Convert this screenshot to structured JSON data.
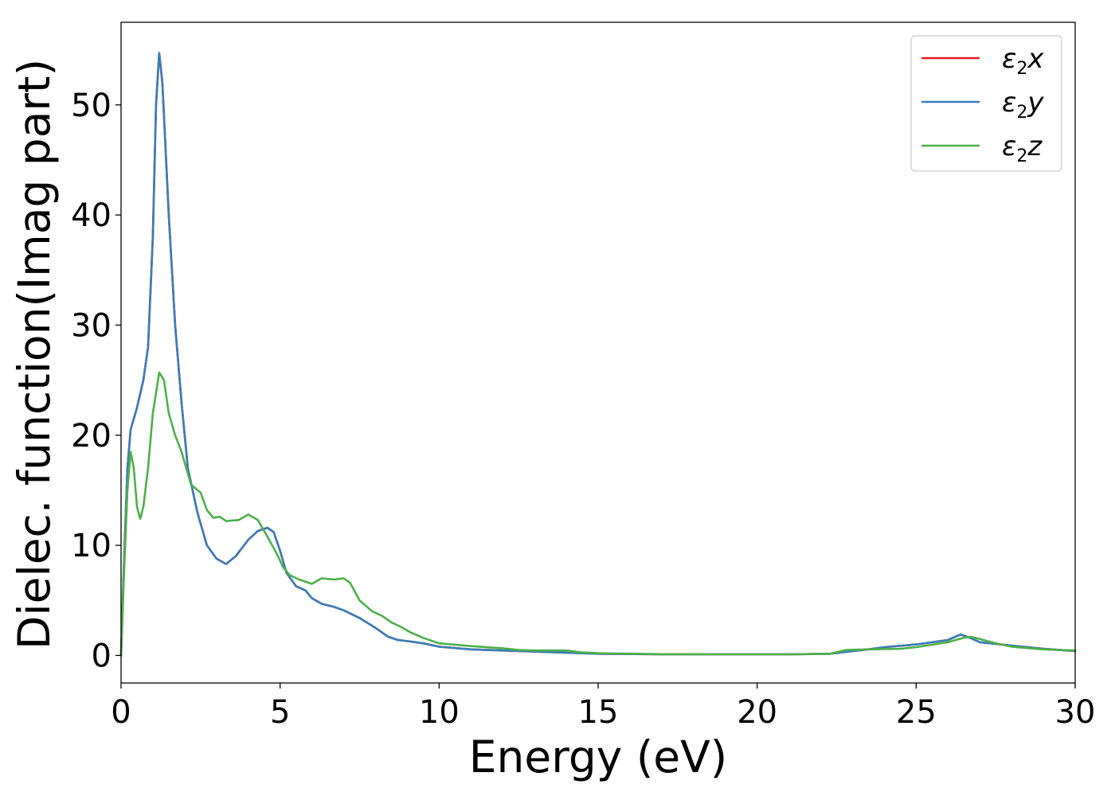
{
  "chart_data": {
    "type": "line",
    "title": "",
    "xlabel": "Energy (eV)",
    "ylabel": "Dielec. function(Imag part)",
    "xlim": [
      0,
      30
    ],
    "ylim": [
      -2.5,
      57.5
    ],
    "xticks": [
      0,
      5,
      10,
      15,
      20,
      25,
      30
    ],
    "yticks": [
      0,
      10,
      20,
      30,
      40,
      50
    ],
    "xtick_labels": [
      "0",
      "5",
      "10",
      "15",
      "20",
      "25",
      "30"
    ],
    "ytick_labels": [
      "0",
      "10",
      "20",
      "30",
      "40",
      "50"
    ],
    "grid": false,
    "legend_position": "top-right",
    "series": [
      {
        "name": "ε2x",
        "legend_symbol": "ε",
        "legend_sub": "2",
        "legend_var": "x",
        "color": "#e41a1c",
        "points": [
          [
            0,
            0
          ],
          [
            0.1,
            9
          ],
          [
            0.2,
            17
          ],
          [
            0.3,
            20.5
          ],
          [
            0.5,
            22.5
          ],
          [
            0.7,
            25
          ],
          [
            0.85,
            28
          ],
          [
            1.0,
            38
          ],
          [
            1.1,
            50
          ],
          [
            1.2,
            54.7
          ],
          [
            1.3,
            52
          ],
          [
            1.5,
            40
          ],
          [
            1.7,
            30
          ],
          [
            1.9,
            23
          ],
          [
            2.1,
            17
          ],
          [
            2.4,
            13
          ],
          [
            2.7,
            10
          ],
          [
            3.0,
            8.8
          ],
          [
            3.3,
            8.3
          ],
          [
            3.6,
            9
          ],
          [
            4.0,
            10.5
          ],
          [
            4.3,
            11.3
          ],
          [
            4.6,
            11.6
          ],
          [
            4.8,
            11.2
          ],
          [
            5.0,
            9.5
          ],
          [
            5.2,
            7.5
          ],
          [
            5.5,
            6.3
          ],
          [
            5.8,
            5.9
          ],
          [
            6.0,
            5.2
          ],
          [
            6.3,
            4.7
          ],
          [
            6.7,
            4.4
          ],
          [
            7.0,
            4.1
          ],
          [
            7.5,
            3.4
          ],
          [
            8.0,
            2.5
          ],
          [
            8.4,
            1.7
          ],
          [
            8.7,
            1.4
          ],
          [
            9.0,
            1.3
          ],
          [
            9.5,
            1.1
          ],
          [
            10,
            0.8
          ],
          [
            11,
            0.55
          ],
          [
            12,
            0.45
          ],
          [
            13,
            0.35
          ],
          [
            14,
            0.25
          ],
          [
            15,
            0.15
          ],
          [
            17,
            0.1
          ],
          [
            19,
            0.1
          ],
          [
            20,
            0.1
          ],
          [
            21,
            0.1
          ],
          [
            22.3,
            0.15
          ],
          [
            23,
            0.4
          ],
          [
            23.5,
            0.55
          ],
          [
            24,
            0.75
          ],
          [
            25,
            1.0
          ],
          [
            26,
            1.4
          ],
          [
            26.4,
            1.9
          ],
          [
            26.7,
            1.6
          ],
          [
            27,
            1.2
          ],
          [
            28,
            0.9
          ],
          [
            29,
            0.6
          ],
          [
            30,
            0.4
          ]
        ]
      },
      {
        "name": "ε2y",
        "legend_symbol": "ε",
        "legend_sub": "2",
        "legend_var": "y",
        "color": "#377eb8",
        "points": [
          [
            0,
            0
          ],
          [
            0.1,
            9
          ],
          [
            0.2,
            17
          ],
          [
            0.3,
            20.5
          ],
          [
            0.5,
            22.5
          ],
          [
            0.7,
            25
          ],
          [
            0.85,
            28
          ],
          [
            1.0,
            38
          ],
          [
            1.1,
            50
          ],
          [
            1.2,
            54.7
          ],
          [
            1.3,
            52
          ],
          [
            1.5,
            40
          ],
          [
            1.7,
            30
          ],
          [
            1.9,
            23
          ],
          [
            2.1,
            17
          ],
          [
            2.4,
            13
          ],
          [
            2.7,
            10
          ],
          [
            3.0,
            8.8
          ],
          [
            3.3,
            8.3
          ],
          [
            3.6,
            9
          ],
          [
            4.0,
            10.5
          ],
          [
            4.3,
            11.3
          ],
          [
            4.6,
            11.6
          ],
          [
            4.8,
            11.2
          ],
          [
            5.0,
            9.5
          ],
          [
            5.2,
            7.5
          ],
          [
            5.5,
            6.3
          ],
          [
            5.8,
            5.9
          ],
          [
            6.0,
            5.2
          ],
          [
            6.3,
            4.7
          ],
          [
            6.7,
            4.4
          ],
          [
            7.0,
            4.1
          ],
          [
            7.5,
            3.4
          ],
          [
            8.0,
            2.5
          ],
          [
            8.4,
            1.7
          ],
          [
            8.7,
            1.4
          ],
          [
            9.0,
            1.3
          ],
          [
            9.5,
            1.1
          ],
          [
            10,
            0.8
          ],
          [
            11,
            0.55
          ],
          [
            12,
            0.45
          ],
          [
            13,
            0.35
          ],
          [
            14,
            0.25
          ],
          [
            15,
            0.15
          ],
          [
            17,
            0.1
          ],
          [
            19,
            0.1
          ],
          [
            20,
            0.1
          ],
          [
            21,
            0.1
          ],
          [
            22.3,
            0.15
          ],
          [
            23,
            0.4
          ],
          [
            23.5,
            0.55
          ],
          [
            24,
            0.75
          ],
          [
            25,
            1.0
          ],
          [
            26,
            1.4
          ],
          [
            26.4,
            1.9
          ],
          [
            26.7,
            1.6
          ],
          [
            27,
            1.2
          ],
          [
            28,
            0.9
          ],
          [
            29,
            0.6
          ],
          [
            30,
            0.4
          ]
        ]
      },
      {
        "name": "ε2z",
        "legend_symbol": "ε",
        "legend_sub": "2",
        "legend_var": "z",
        "color": "#4daf4a",
        "points": [
          [
            0,
            0
          ],
          [
            0.1,
            8
          ],
          [
            0.2,
            15
          ],
          [
            0.3,
            18.5
          ],
          [
            0.4,
            17
          ],
          [
            0.5,
            13.5
          ],
          [
            0.6,
            12.4
          ],
          [
            0.7,
            13.5
          ],
          [
            0.85,
            17
          ],
          [
            1.0,
            22
          ],
          [
            1.2,
            25.7
          ],
          [
            1.35,
            25
          ],
          [
            1.5,
            22
          ],
          [
            1.7,
            20
          ],
          [
            1.9,
            18.5
          ],
          [
            2.2,
            15.5
          ],
          [
            2.5,
            14.8
          ],
          [
            2.7,
            13.2
          ],
          [
            2.9,
            12.5
          ],
          [
            3.1,
            12.6
          ],
          [
            3.3,
            12.2
          ],
          [
            3.7,
            12.3
          ],
          [
            4.0,
            12.8
          ],
          [
            4.3,
            12.3
          ],
          [
            4.6,
            10.8
          ],
          [
            4.9,
            9.2
          ],
          [
            5.1,
            8.0
          ],
          [
            5.3,
            7.3
          ],
          [
            5.6,
            6.9
          ],
          [
            6.0,
            6.5
          ],
          [
            6.3,
            7.0
          ],
          [
            6.7,
            6.9
          ],
          [
            7.0,
            7.0
          ],
          [
            7.2,
            6.6
          ],
          [
            7.5,
            5.0
          ],
          [
            7.9,
            4.0
          ],
          [
            8.2,
            3.6
          ],
          [
            8.5,
            3.0
          ],
          [
            8.8,
            2.6
          ],
          [
            9.1,
            2.1
          ],
          [
            9.5,
            1.6
          ],
          [
            10,
            1.1
          ],
          [
            11,
            0.85
          ],
          [
            12,
            0.65
          ],
          [
            12.5,
            0.5
          ],
          [
            13,
            0.45
          ],
          [
            14,
            0.45
          ],
          [
            14.4,
            0.3
          ],
          [
            15,
            0.2
          ],
          [
            17,
            0.12
          ],
          [
            19,
            0.1
          ],
          [
            20,
            0.1
          ],
          [
            21,
            0.1
          ],
          [
            22.3,
            0.15
          ],
          [
            22.8,
            0.5
          ],
          [
            23.5,
            0.55
          ],
          [
            24.5,
            0.6
          ],
          [
            25,
            0.75
          ],
          [
            26,
            1.2
          ],
          [
            26.5,
            1.6
          ],
          [
            26.7,
            1.7
          ],
          [
            27,
            1.5
          ],
          [
            27.5,
            1.1
          ],
          [
            28,
            0.8
          ],
          [
            29,
            0.55
          ],
          [
            30,
            0.45
          ]
        ]
      }
    ]
  }
}
